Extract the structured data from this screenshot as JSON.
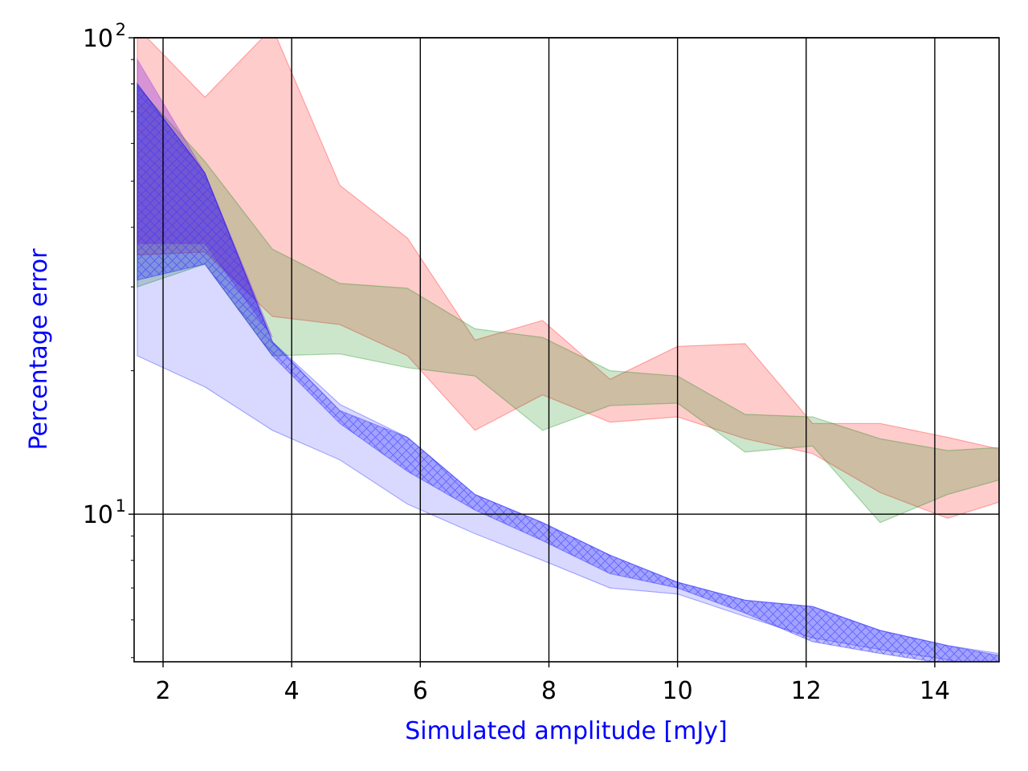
{
  "chart_data": {
    "type": "area",
    "title": "",
    "xlabel": "Simulated amplitude [mJy]",
    "ylabel": "Percentage error",
    "xlabel_color": "#0000ff",
    "ylabel_color": "#0000ff",
    "xlim": [
      1.55,
      15.0
    ],
    "ylim": [
      4.9,
      100
    ],
    "yscale": "log",
    "grid": true,
    "x_ticks": [
      {
        "value": 2,
        "label": "2"
      },
      {
        "value": 4,
        "label": "4"
      },
      {
        "value": 6,
        "label": "6"
      },
      {
        "value": 8,
        "label": "8"
      },
      {
        "value": 10,
        "label": "10"
      },
      {
        "value": 12,
        "label": "12"
      },
      {
        "value": 14,
        "label": "14"
      }
    ],
    "y_ticks": [
      {
        "value": 10,
        "base": "10",
        "exp": "1"
      },
      {
        "value": 100,
        "base": "10",
        "exp": "2"
      }
    ],
    "series": [
      {
        "name": "red band",
        "color": "#ff0000",
        "opacity": 0.2,
        "hatch": false,
        "x": [
          1.6,
          2.65,
          3.7,
          4.75,
          5.8,
          6.85,
          7.9,
          8.95,
          10.0,
          11.05,
          12.1,
          13.15,
          14.2,
          15.0
        ],
        "lower": [
          35.0,
          35.5,
          26.0,
          25.0,
          21.5,
          15.0,
          17.8,
          15.6,
          16.0,
          14.4,
          13.4,
          11.1,
          9.8,
          10.6
        ],
        "upper": [
          105,
          75,
          105,
          49,
          38,
          23.2,
          25.5,
          19.2,
          22.5,
          22.8,
          15.5,
          15.5,
          14.5,
          13.7
        ]
      },
      {
        "name": "green band",
        "color": "#008000",
        "opacity": 0.2,
        "hatch": false,
        "x": [
          1.6,
          2.65,
          3.7,
          4.75,
          5.8,
          6.85,
          7.9,
          8.95,
          10.0,
          11.05,
          12.1,
          13.15,
          14.2,
          15.0
        ],
        "lower": [
          30.0,
          33.5,
          21.5,
          21.7,
          20.3,
          19.5,
          15.0,
          16.9,
          17.1,
          13.5,
          13.9,
          9.6,
          11.0,
          11.8
        ],
        "upper": [
          79,
          55,
          36,
          30.5,
          29.8,
          24.5,
          23.5,
          20.0,
          19.5,
          16.2,
          16.0,
          14.4,
          13.6,
          13.8
        ]
      },
      {
        "name": "purple band",
        "color": "#8a2be2",
        "opacity": 0.35,
        "hatch": false,
        "x": [
          1.6,
          2.65,
          3.7
        ],
        "lower": [
          37.0,
          37.0,
          23.5
        ],
        "upper": [
          90,
          52,
          23.5
        ]
      },
      {
        "name": "blue hatched band (outer)",
        "color": "#0000ff",
        "opacity": 0.15,
        "hatch": false,
        "x": [
          1.6,
          2.65,
          3.7,
          4.75,
          5.8,
          6.85,
          7.9,
          8.95,
          10.0,
          11.05,
          12.1,
          13.15,
          14.2,
          15.0
        ],
        "lower": [
          21.5,
          18.5,
          15.0,
          13.0,
          10.5,
          9.1,
          8.0,
          7.0,
          6.8,
          6.1,
          5.5,
          5.2,
          4.95,
          4.65
        ],
        "upper": [
          80,
          52,
          23.0,
          17.0,
          14.5,
          11.0,
          9.6,
          8.2,
          7.2,
          6.6,
          6.4,
          5.7,
          5.3,
          5.1
        ]
      },
      {
        "name": "blue hatched band",
        "color": "#0000ff",
        "opacity": 0.25,
        "hatch": true,
        "x": [
          1.6,
          2.65,
          3.7,
          4.75,
          5.8,
          6.85,
          7.9,
          8.95,
          10.0,
          11.05,
          12.1,
          13.15,
          14.2,
          15.0
        ],
        "lower": [
          31.0,
          33.5,
          21.5,
          15.5,
          12.3,
          10.2,
          8.8,
          7.5,
          7.0,
          6.2,
          5.4,
          5.1,
          4.85,
          4.55
        ],
        "upper": [
          80,
          52,
          23.0,
          16.5,
          14.5,
          11.0,
          9.6,
          8.2,
          7.2,
          6.6,
          6.4,
          5.7,
          5.3,
          5.05
        ]
      }
    ]
  }
}
